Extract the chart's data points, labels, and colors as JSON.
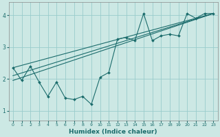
{
  "xlabel": "Humidex (Indice chaleur)",
  "bg_color": "#cce8e4",
  "grid_color": "#99cccc",
  "line_color": "#1a6b6b",
  "xlim": [
    -0.5,
    23.5
  ],
  "ylim": [
    0.7,
    4.4
  ],
  "xticks": [
    0,
    1,
    2,
    3,
    4,
    5,
    6,
    7,
    8,
    9,
    10,
    11,
    12,
    13,
    14,
    15,
    16,
    17,
    18,
    19,
    20,
    21,
    22,
    23
  ],
  "yticks": [
    1,
    2,
    3,
    4
  ],
  "line1_x": [
    0,
    1,
    2,
    3,
    4,
    5,
    6,
    7,
    8,
    9,
    10,
    11,
    12,
    13,
    14,
    15,
    16,
    17,
    18,
    19,
    20,
    21,
    22,
    23
  ],
  "line1_y": [
    2.35,
    1.95,
    2.4,
    1.9,
    1.45,
    1.9,
    1.4,
    1.35,
    1.45,
    1.2,
    2.05,
    2.2,
    3.25,
    3.3,
    3.2,
    4.05,
    3.2,
    3.35,
    3.4,
    3.35,
    4.05,
    3.9,
    4.05,
    4.05
  ],
  "line2_x": [
    0,
    23
  ],
  "line2_y": [
    1.95,
    4.05
  ],
  "line3_x": [
    0,
    23
  ],
  "line3_y": [
    2.1,
    4.05
  ],
  "line4_x": [
    0,
    23
  ],
  "line4_y": [
    2.35,
    4.05
  ]
}
